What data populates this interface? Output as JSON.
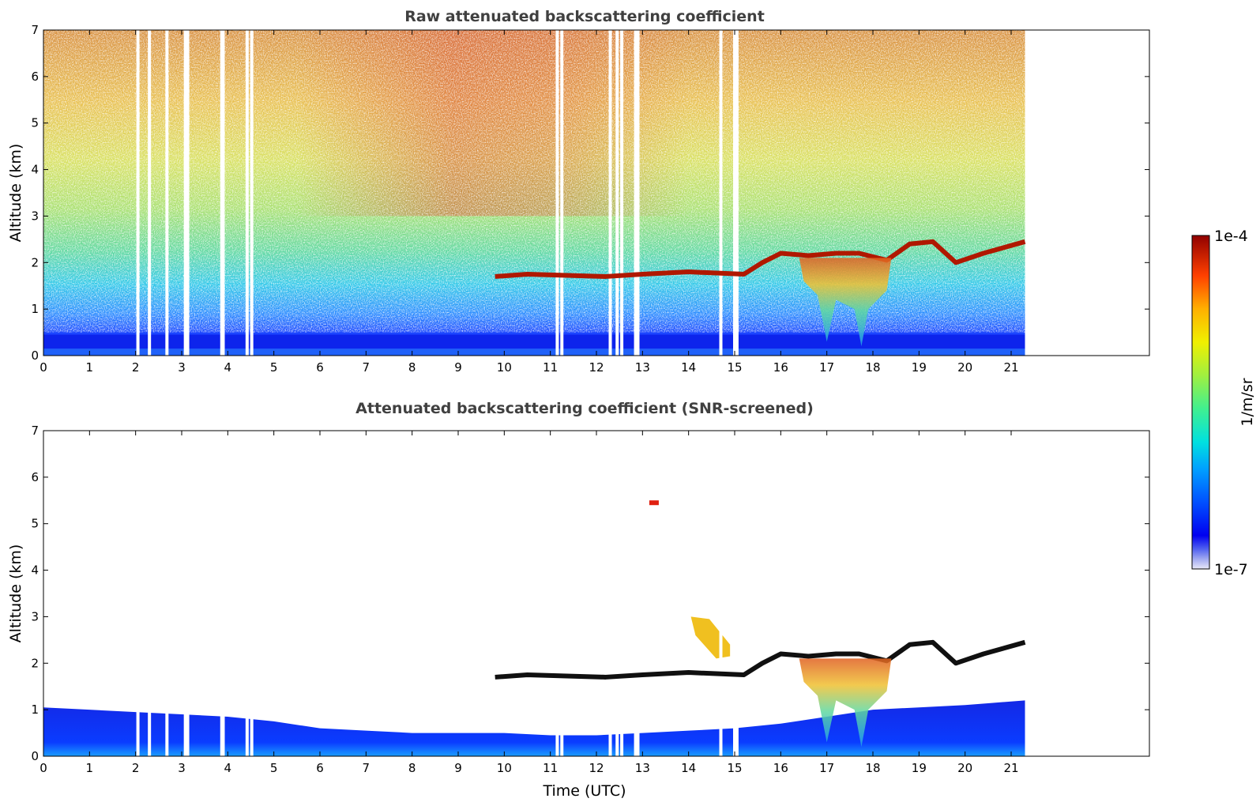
{
  "chart_data": [
    {
      "type": "heatmap",
      "title": "Raw attenuated backscattering coefficient",
      "xlabel": "",
      "ylabel": "Altitude (km)",
      "xlim": [
        0,
        24
      ],
      "ylim": [
        0,
        7
      ],
      "xticks": [
        0,
        1,
        2,
        3,
        4,
        5,
        6,
        7,
        8,
        9,
        10,
        11,
        12,
        13,
        14,
        15,
        16,
        17,
        18,
        19,
        20,
        21
      ],
      "yticks": [
        0,
        1,
        2,
        3,
        4,
        5,
        6,
        7
      ],
      "data_extent_x": [
        0,
        21.3
      ],
      "gap_times": [
        2.05,
        2.3,
        2.68,
        3.08,
        3.13,
        3.87,
        3.9,
        4.42,
        4.52,
        11.15,
        11.25,
        12.3,
        12.45,
        12.55,
        12.85,
        12.9,
        14.7,
        15.0,
        15.05
      ],
      "cloud_layer": [
        {
          "x": 9.8,
          "y": 1.7
        },
        {
          "x": 10.5,
          "y": 1.75
        },
        {
          "x": 12.2,
          "y": 1.7
        },
        {
          "x": 13.0,
          "y": 1.75
        },
        {
          "x": 14.0,
          "y": 1.8
        },
        {
          "x": 15.2,
          "y": 1.75
        },
        {
          "x": 15.6,
          "y": 2.0
        },
        {
          "x": 16.0,
          "y": 2.2
        },
        {
          "x": 16.6,
          "y": 2.15
        },
        {
          "x": 17.2,
          "y": 2.2
        },
        {
          "x": 17.7,
          "y": 2.2
        },
        {
          "x": 18.3,
          "y": 2.05
        },
        {
          "x": 18.8,
          "y": 2.4
        },
        {
          "x": 19.3,
          "y": 2.45
        },
        {
          "x": 19.8,
          "y": 2.0
        },
        {
          "x": 20.4,
          "y": 2.2
        },
        {
          "x": 21.3,
          "y": 2.45
        }
      ]
    },
    {
      "type": "heatmap",
      "title": "Attenuated backscattering coefficient (SNR-screened)",
      "xlabel": "Time (UTC)",
      "ylabel": "Altitude (km)",
      "xlim": [
        0,
        24
      ],
      "ylim": [
        0,
        7
      ],
      "xticks": [
        0,
        1,
        2,
        3,
        4,
        5,
        6,
        7,
        8,
        9,
        10,
        11,
        12,
        13,
        14,
        15,
        16,
        17,
        18,
        19,
        20,
        21
      ],
      "yticks": [
        0,
        1,
        2,
        3,
        4,
        5,
        6,
        7
      ],
      "data_extent_x": [
        0,
        21.3
      ],
      "boundary_layer_top": [
        {
          "x": 0,
          "y": 1.05
        },
        {
          "x": 1,
          "y": 1.0
        },
        {
          "x": 2,
          "y": 0.95
        },
        {
          "x": 3,
          "y": 0.9
        },
        {
          "x": 4,
          "y": 0.85
        },
        {
          "x": 5,
          "y": 0.75
        },
        {
          "x": 6,
          "y": 0.6
        },
        {
          "x": 7,
          "y": 0.55
        },
        {
          "x": 8,
          "y": 0.5
        },
        {
          "x": 9,
          "y": 0.5
        },
        {
          "x": 10,
          "y": 0.5
        },
        {
          "x": 11,
          "y": 0.45
        },
        {
          "x": 12,
          "y": 0.45
        },
        {
          "x": 13,
          "y": 0.5
        },
        {
          "x": 14,
          "y": 0.55
        },
        {
          "x": 15,
          "y": 0.6
        },
        {
          "x": 16,
          "y": 0.7
        },
        {
          "x": 17,
          "y": 0.85
        },
        {
          "x": 18,
          "y": 1.0
        },
        {
          "x": 19,
          "y": 1.05
        },
        {
          "x": 20,
          "y": 1.1
        },
        {
          "x": 21.3,
          "y": 1.2
        }
      ],
      "elevated_features": [
        {
          "x": 13.25,
          "y": 5.45
        },
        {
          "x": 14.4,
          "y": 2.6
        }
      ]
    }
  ],
  "colorbar": {
    "label": "1/m/sr",
    "min_label": "1e-7",
    "max_label": "1e-4",
    "colormap": "jet",
    "scale": "log"
  }
}
